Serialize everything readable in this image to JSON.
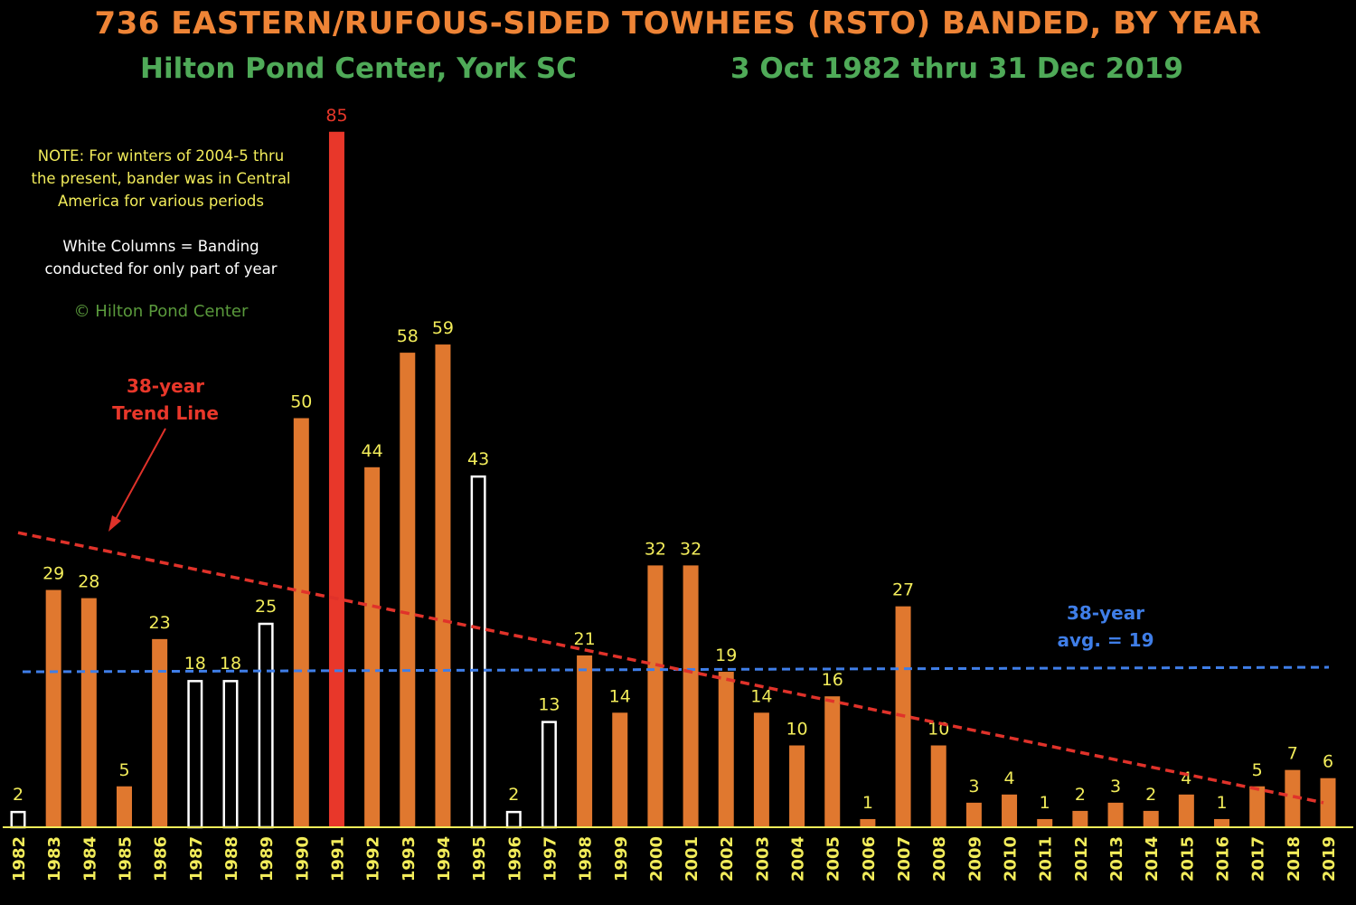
{
  "title": "736 EASTERN/RUFOUS-SIDED TOWHEES (RSTO) BANDED, BY YEAR",
  "subtitle_left": "Hilton Pond Center, York SC",
  "subtitle_right": "3 Oct 1982 thru 31 Dec 2019",
  "note": {
    "text": "NOTE: For winters of 2004-5 thru the present, bander was in Central America for various periods",
    "legend": "White Columns = Banding conducted for only part of year",
    "copyright": "© Hilton Pond Center"
  },
  "trend_label": {
    "line1": "38-year",
    "line2": "Trend Line"
  },
  "avg_label": {
    "line1": "38-year",
    "line2": "avg. = 19"
  },
  "colors": {
    "full_year": "#e0782f",
    "partial_year": "#ffffff",
    "highlight": "#e8372a",
    "value_label": "#f2ec5a",
    "highlight_label": "#e8372a",
    "trend_line": "#e0322a",
    "avg_line": "#3f7ee8",
    "axis": "#f2ec5a",
    "year_label": "#f2ec5a"
  },
  "chart_data": {
    "type": "bar",
    "categories": [
      "1982",
      "1983",
      "1984",
      "1985",
      "1986",
      "1987",
      "1988",
      "1989",
      "1990",
      "1991",
      "1992",
      "1993",
      "1994",
      "1995",
      "1996",
      "1997",
      "1998",
      "1999",
      "2000",
      "2001",
      "2002",
      "2003",
      "2004",
      "2005",
      "2006",
      "2007",
      "2008",
      "2009",
      "2010",
      "2011",
      "2012",
      "2013",
      "2014",
      "2015",
      "2016",
      "2017",
      "2018",
      "2019"
    ],
    "values": [
      2,
      29,
      28,
      5,
      23,
      18,
      18,
      25,
      50,
      85,
      44,
      58,
      59,
      43,
      2,
      13,
      21,
      14,
      32,
      32,
      19,
      14,
      10,
      16,
      1,
      27,
      10,
      3,
      4,
      1,
      2,
      3,
      2,
      4,
      1,
      5,
      7,
      6
    ],
    "partial_year": [
      "1982",
      "1987",
      "1988",
      "1989",
      "1995",
      "1996",
      "1997"
    ],
    "highlight": [
      "1991"
    ],
    "average": 19,
    "trend_line": {
      "start": 36,
      "end": 3
    },
    "ylim": [
      0,
      85
    ],
    "grid": false,
    "xlabel": "",
    "ylabel": ""
  }
}
